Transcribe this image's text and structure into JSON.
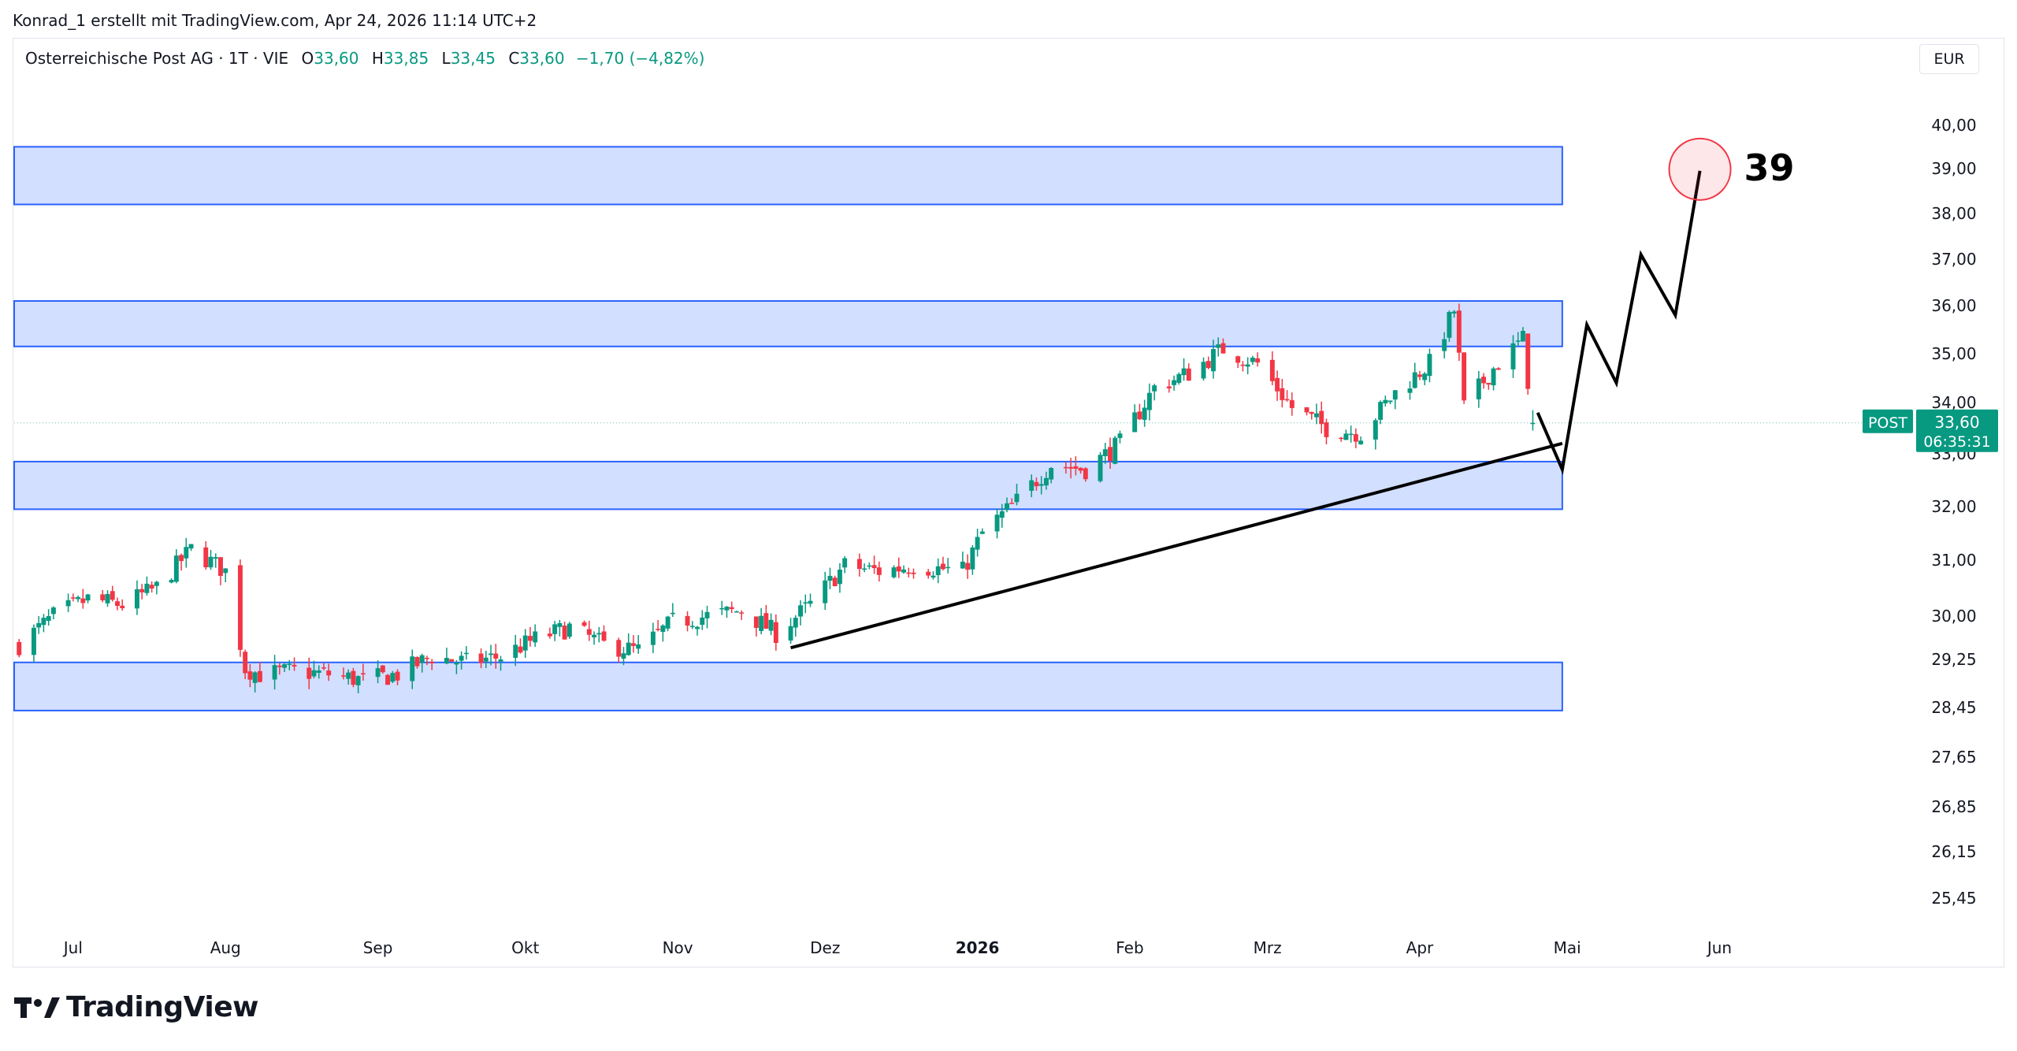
{
  "header": {
    "attribution": "Konrad_1 erstellt mit TradingView.com, Apr 24, 2026 11:14 UTC+2"
  },
  "legend": {
    "symbol": "Osterreichische Post AG · 1T · VIE",
    "open_label": "O",
    "open": "33,60",
    "high_label": "H",
    "high": "33,85",
    "low_label": "L",
    "low": "33,45",
    "close_label": "C",
    "close": "33,60",
    "change": "−1,70 (−4,82%)"
  },
  "currency_button": "EUR",
  "brand": {
    "name": "TradingView",
    "logo_icon": "tradingview-logo-icon"
  },
  "colors": {
    "up": "#089981",
    "down": "#f23645",
    "zone_fill": "#d2dfff",
    "zone_stroke": "#2962ff",
    "target_circle": "#f23645"
  },
  "chart_data": {
    "type": "candlestick",
    "y_scale": "log",
    "price_axis_ticks": [
      "40,00",
      "39,00",
      "38,00",
      "37,00",
      "36,00",
      "35,00",
      "34,00",
      "33,00",
      "32,00",
      "31,00",
      "30,00",
      "29,25",
      "28,45",
      "27,65",
      "26,85",
      "26,15",
      "25,45"
    ],
    "price_axis_values": [
      40,
      39,
      38,
      37,
      36,
      35,
      34,
      33,
      32,
      31,
      30,
      29.25,
      28.45,
      27.65,
      26.85,
      26.15,
      25.45
    ],
    "ylim": [
      25.1,
      41.0
    ],
    "time_axis_ticks": [
      {
        "label": "Jul",
        "date": "2025-07-01",
        "bold": false
      },
      {
        "label": "Aug",
        "date": "2025-08-01",
        "bold": false
      },
      {
        "label": "Sep",
        "date": "2025-09-01",
        "bold": false
      },
      {
        "label": "Okt",
        "date": "2025-10-01",
        "bold": false
      },
      {
        "label": "Nov",
        "date": "2025-11-01",
        "bold": false
      },
      {
        "label": "Dez",
        "date": "2025-12-01",
        "bold": false
      },
      {
        "label": "2026",
        "date": "2026-01-01",
        "bold": true
      },
      {
        "label": "Feb",
        "date": "2026-02-01",
        "bold": false
      },
      {
        "label": "Mrz",
        "date": "2026-03-01",
        "bold": false
      },
      {
        "label": "Apr",
        "date": "2026-04-01",
        "bold": false
      },
      {
        "label": "Mai",
        "date": "2026-05-01",
        "bold": false
      },
      {
        "label": "Jun",
        "date": "2026-06-01",
        "bold": false
      }
    ],
    "xlim": [
      "2025-06-19",
      "2026-07-11"
    ],
    "anchor_closes": [
      [
        "2025-06-20",
        29.5
      ],
      [
        "2025-06-27",
        30.0
      ],
      [
        "2025-07-04",
        30.3
      ],
      [
        "2025-07-11",
        30.2
      ],
      [
        "2025-07-18",
        30.5
      ],
      [
        "2025-07-25",
        31.2
      ],
      [
        "2025-08-01",
        30.8
      ],
      [
        "2025-08-05",
        29.1
      ],
      [
        "2025-08-08",
        29.0
      ],
      [
        "2025-08-15",
        29.05
      ],
      [
        "2025-08-22",
        29.0
      ],
      [
        "2025-08-29",
        28.9
      ],
      [
        "2025-09-05",
        29.0
      ],
      [
        "2025-09-12",
        29.3
      ],
      [
        "2025-09-19",
        29.2
      ],
      [
        "2025-09-26",
        29.3
      ],
      [
        "2025-10-03",
        29.6
      ],
      [
        "2025-10-10",
        29.8
      ],
      [
        "2025-10-17",
        29.5
      ],
      [
        "2025-10-24",
        29.4
      ],
      [
        "2025-10-31",
        29.9
      ],
      [
        "2025-11-07",
        30.0
      ],
      [
        "2025-11-14",
        30.1
      ],
      [
        "2025-11-21",
        29.7
      ],
      [
        "2025-11-28",
        30.2
      ],
      [
        "2025-12-05",
        30.9
      ],
      [
        "2025-12-12",
        30.8
      ],
      [
        "2025-12-19",
        30.9
      ],
      [
        "2025-12-29",
        30.8
      ],
      [
        "2026-01-02",
        31.5
      ],
      [
        "2026-01-09",
        32.1
      ],
      [
        "2026-01-16",
        32.8
      ],
      [
        "2026-01-23",
        32.7
      ],
      [
        "2026-01-30",
        33.2
      ],
      [
        "2026-02-06",
        34.3
      ],
      [
        "2026-02-13",
        34.6
      ],
      [
        "2026-02-20",
        35.1
      ],
      [
        "2026-02-27",
        34.8
      ],
      [
        "2026-03-06",
        33.9
      ],
      [
        "2026-03-13",
        33.5
      ],
      [
        "2026-03-20",
        33.4
      ],
      [
        "2026-03-27",
        34.2
      ],
      [
        "2026-04-03",
        34.8
      ],
      [
        "2026-04-08",
        35.9
      ],
      [
        "2026-04-10",
        33.9
      ],
      [
        "2026-04-16",
        34.7
      ],
      [
        "2026-04-22",
        35.3
      ],
      [
        "2026-04-24",
        33.6
      ]
    ],
    "last_candle": {
      "date": "2026-04-24",
      "open": 33.6,
      "high": 33.85,
      "low": 33.45,
      "close": 33.6
    },
    "zones": [
      {
        "from": "2025-06-19",
        "to": "2026-04-30",
        "low": 38.2,
        "high": 39.5
      },
      {
        "from": "2025-06-19",
        "to": "2026-04-30",
        "low": 35.15,
        "high": 36.1
      },
      {
        "from": "2025-06-19",
        "to": "2026-04-30",
        "low": 31.95,
        "high": 32.85
      },
      {
        "from": "2025-06-19",
        "to": "2026-04-30",
        "low": 28.4,
        "high": 29.2
      }
    ],
    "trendline": {
      "from": [
        "2025-11-24",
        29.45
      ],
      "to": [
        "2026-04-30",
        33.2
      ]
    },
    "projection_path": [
      [
        "2026-04-25",
        33.8
      ],
      [
        "2026-04-30",
        32.7
      ],
      [
        "2026-05-05",
        35.6
      ],
      [
        "2026-05-11",
        34.4
      ],
      [
        "2026-05-16",
        37.1
      ],
      [
        "2026-05-23",
        35.8
      ],
      [
        "2026-05-28",
        38.95
      ]
    ],
    "target": {
      "date": "2026-05-28",
      "price": 38.95,
      "label": "39"
    },
    "price_badge": {
      "symbol": "POST",
      "price": "33,60",
      "countdown": "06:35:31",
      "value": 33.6
    }
  }
}
